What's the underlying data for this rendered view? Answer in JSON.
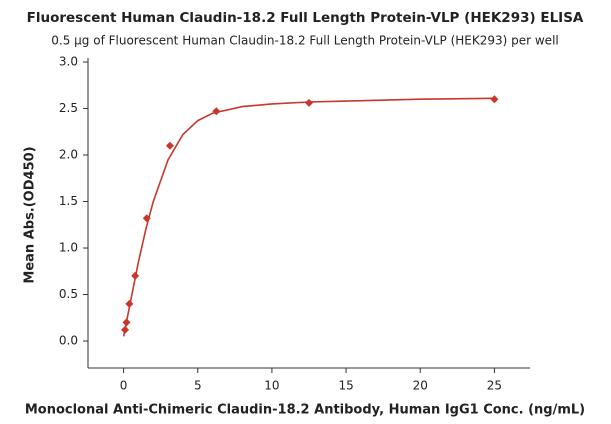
{
  "chart_data": {
    "type": "scatter",
    "title": "Fluorescent Human Claudin-18.2 Full Length Protein-VLP (HEK293) ELISA",
    "subtitle": "0.5 μg of Fluorescent Human Claudin-18.2 Full Length Protein-VLP (HEK293) per well",
    "x_label": "Monoclonal Anti-Chimeric Claudin-18.2 Antibody, Human IgG1 Conc. (ng/mL)",
    "y_label": "Mean Abs.(OD450)",
    "xlim": [
      -2.4,
      27.4
    ],
    "ylim": [
      -0.29,
      3.0
    ],
    "xticks": [
      0,
      5,
      10,
      15,
      20,
      25
    ],
    "yticks": [
      {
        "value": 0,
        "label": "0.0"
      },
      0.5,
      {
        "value": 1,
        "label": "1.0"
      },
      1.5,
      {
        "value": 2,
        "label": "2.0"
      },
      2.5,
      {
        "value": 3,
        "label": "3.0"
      }
    ],
    "series": [
      {
        "color": "#c8362c",
        "x": [
          0.098,
          0.195,
          0.39,
          0.78,
          1.5625,
          3.125,
          6.25,
          12.5,
          25
        ],
        "values": [
          0.12,
          0.2,
          0.4,
          0.7,
          1.32,
          2.1,
          2.47,
          2.56,
          2.6
        ]
      }
    ],
    "curve": {
      "color": "#c8362c",
      "x": [
        0,
        0.5,
        1,
        1.5,
        2,
        3,
        4,
        5,
        6,
        8,
        10,
        12.5,
        15,
        20,
        25
      ],
      "values": [
        0.05,
        0.45,
        0.85,
        1.2,
        1.5,
        1.95,
        2.22,
        2.37,
        2.45,
        2.52,
        2.55,
        2.57,
        2.58,
        2.6,
        2.61
      ]
    }
  }
}
